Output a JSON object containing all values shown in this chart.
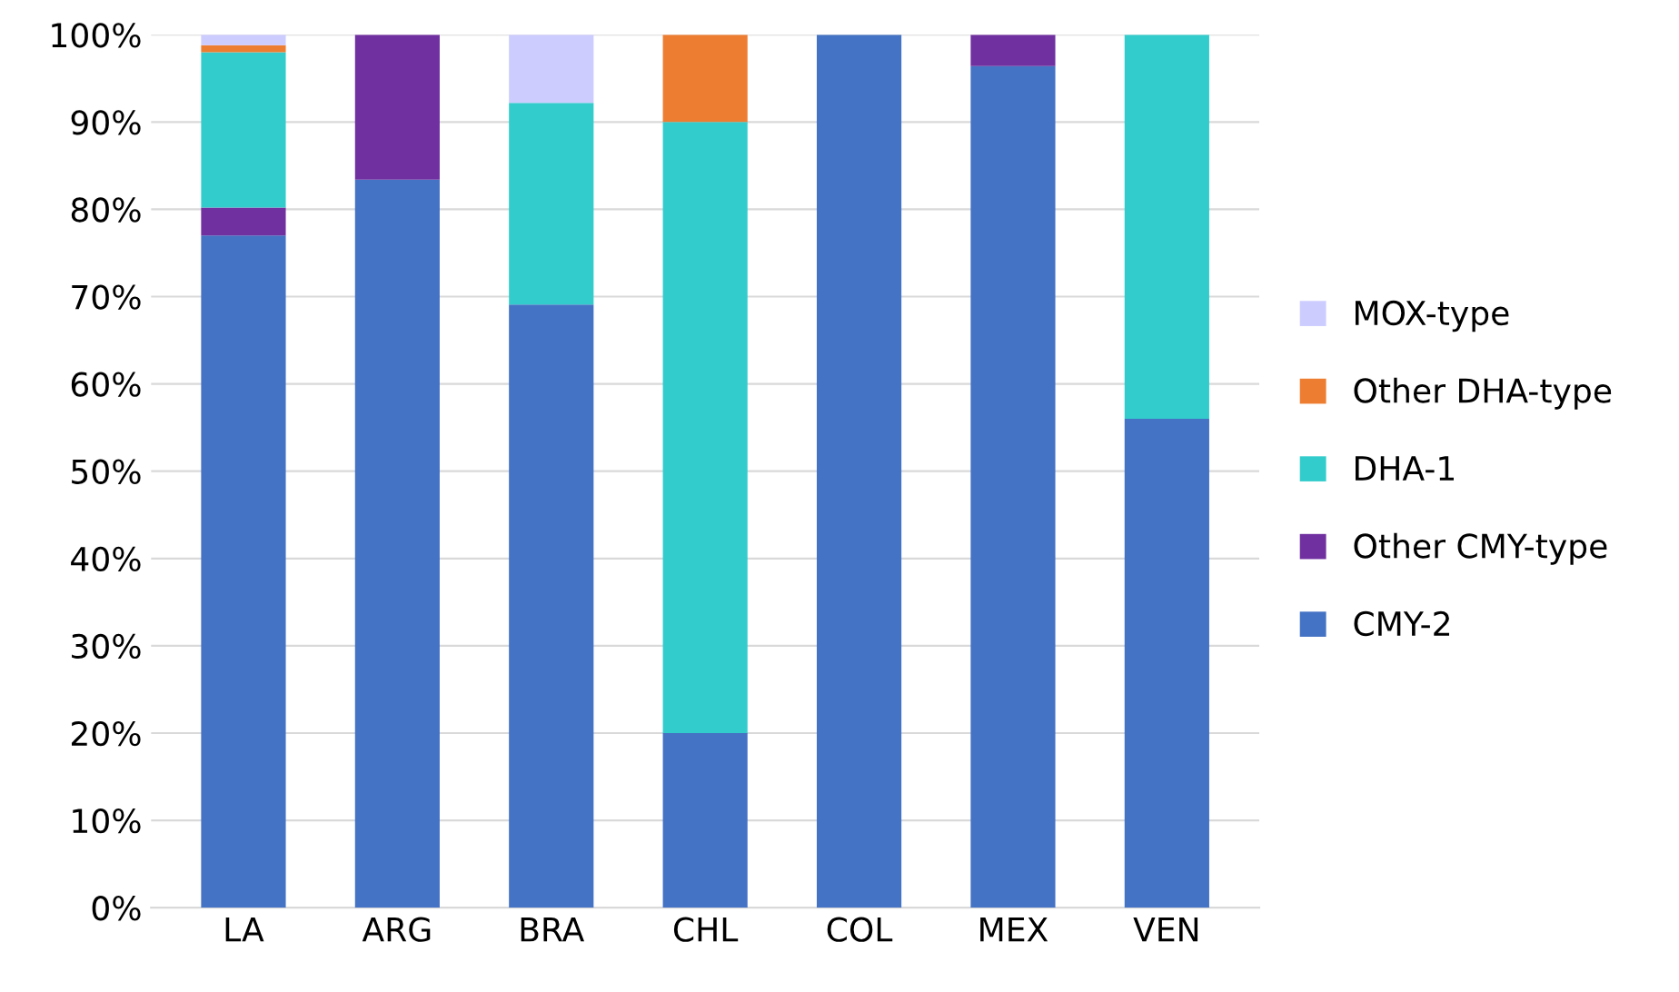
{
  "chart_data": {
    "type": "bar",
    "stacked": true,
    "categories": [
      "LA",
      "ARG",
      "BRA",
      "CHL",
      "COL",
      "MEX",
      "VEN"
    ],
    "series": [
      {
        "name": "CMY-2",
        "color": "#4472c4",
        "values": [
          77.0,
          83.4,
          69.1,
          20.0,
          100,
          96.4,
          56.0
        ]
      },
      {
        "name": "Other CMY-type",
        "color": "#7030a0",
        "values": [
          3.2,
          16.6,
          null,
          null,
          null,
          3.6,
          null
        ]
      },
      {
        "name": "DHA-1",
        "color": "#33cccc",
        "values": [
          17.8,
          null,
          23.1,
          70.0,
          null,
          null,
          44.0
        ]
      },
      {
        "name": "Other DHA-type",
        "color": "#ed7d31",
        "values": [
          0.8,
          null,
          null,
          10.0,
          null,
          null,
          null
        ]
      },
      {
        "name": "MOX-type",
        "color": "#ccccff",
        "values": [
          1.2,
          null,
          7.8,
          null,
          null,
          null,
          null
        ]
      }
    ],
    "ylim": [
      0,
      100
    ],
    "yticks": [
      {
        "value": 0,
        "label": "0%"
      },
      {
        "value": 10,
        "label": "10%"
      },
      {
        "value": 20,
        "label": "20%"
      },
      {
        "value": 30,
        "label": "30%"
      },
      {
        "value": 40,
        "label": "40%"
      },
      {
        "value": 50,
        "label": "50%"
      },
      {
        "value": 60,
        "label": "60%"
      },
      {
        "value": 70,
        "label": "70%"
      },
      {
        "value": 80,
        "label": "80%"
      },
      {
        "value": 90,
        "label": "90%"
      },
      {
        "value": 100,
        "label": "100%"
      }
    ],
    "grid": "y",
    "legend": "right"
  }
}
